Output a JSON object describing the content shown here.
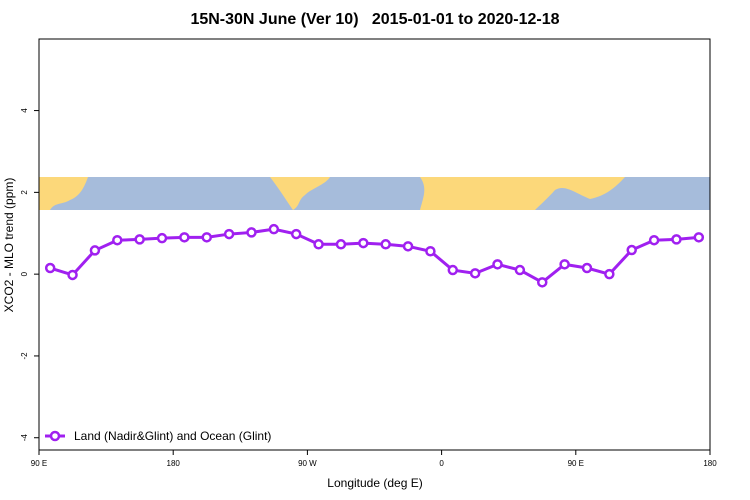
{
  "chart_data": {
    "type": "line",
    "title": "15N-30N June (Ver 10)   2015-01-01 to 2020-12-18",
    "x_label": "Longitude (deg E)",
    "y_label": "XCO2 - MLO trend (ppm)",
    "xlim": [
      90,
      540
    ],
    "xticks": [
      {
        "value": 90,
        "label": "90 E"
      },
      {
        "value": 180,
        "label": "180"
      },
      {
        "value": 270,
        "label": "90 W"
      },
      {
        "value": 360,
        "label": "0"
      },
      {
        "value": 450,
        "label": "90 E"
      },
      {
        "value": 540,
        "label": "180"
      }
    ],
    "ylim": [
      -4.3,
      5.75
    ],
    "yticks": [
      -4,
      -2,
      0,
      2,
      4
    ],
    "x": [
      97.5,
      112.5,
      127.5,
      142.5,
      157.5,
      172.5,
      187.5,
      202.5,
      217.5,
      232.5,
      247.5,
      262.5,
      277.5,
      292.5,
      307.5,
      322.5,
      337.5,
      352.5,
      367.5,
      382.5,
      397.5,
      412.5,
      427.5,
      442.5,
      457.5,
      472.5,
      487.5,
      502.5,
      517.5,
      532.5
    ],
    "series": [
      {
        "name": "Land (Nadir&Glint) and Ocean (Glint)",
        "color": "#a020f0",
        "values": [
          0.15,
          -0.02,
          0.58,
          0.83,
          0.85,
          0.88,
          0.9,
          0.9,
          0.98,
          1.02,
          1.1,
          0.98,
          0.73,
          0.73,
          0.76,
          0.73,
          0.68,
          0.56,
          0.1,
          0.02,
          0.24,
          0.1,
          -0.2,
          0.24,
          0.15,
          0.0,
          0.59,
          0.83,
          0.85,
          0.9
        ]
      }
    ]
  }
}
